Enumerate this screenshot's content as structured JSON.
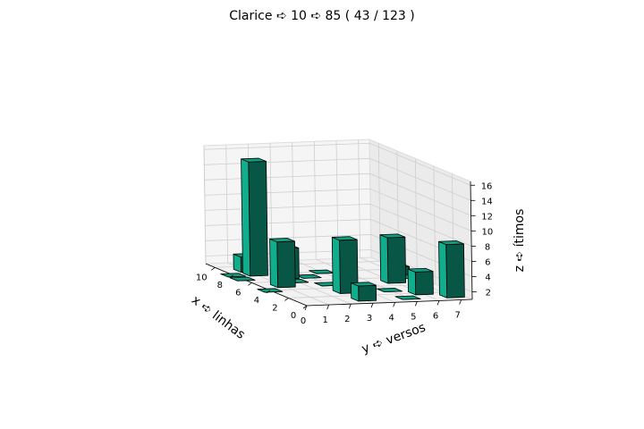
{
  "chart_data": {
    "type": "bar3d",
    "title": "Clarice ➪ 10 ➪ 85 ( 43 / 123 )",
    "xlabel": "x ➪ linhas",
    "ylabel": "y ➪ versos",
    "zlabel": "z ➪ ítimos",
    "xlim": [
      0,
      11
    ],
    "ylim": [
      0,
      7.5
    ],
    "zlim": [
      1,
      16.5
    ],
    "xticks": [
      "0",
      "2",
      "4",
      "6",
      "8",
      "10"
    ],
    "yticks": [
      "0",
      "1",
      "2",
      "3",
      "4",
      "5",
      "6",
      "7"
    ],
    "zticks": [
      "2",
      "4",
      "6",
      "8",
      "10",
      "12",
      "14",
      "16"
    ],
    "bar_color": "#0f9e80",
    "edge_color": "#000000",
    "bars": [
      {
        "x": 1,
        "y": 7,
        "z": 8
      },
      {
        "x": 1,
        "y": 5,
        "z": 1
      },
      {
        "x": 2,
        "y": 6,
        "z": 4
      },
      {
        "x": 1,
        "y": 3,
        "z": 3
      },
      {
        "x": 3,
        "y": 3,
        "z": 8
      },
      {
        "x": 3,
        "y": 5,
        "z": 1
      },
      {
        "x": 4,
        "y": 0,
        "z": 1
      },
      {
        "x": 5,
        "y": 1,
        "z": 7
      },
      {
        "x": 4,
        "y": 4,
        "z": 1
      },
      {
        "x": 5,
        "y": 3,
        "z": 1
      },
      {
        "x": 6,
        "y": 7,
        "z": 1
      },
      {
        "x": 5,
        "y": 6,
        "z": 7
      },
      {
        "x": 7,
        "y": 0,
        "z": 1
      },
      {
        "x": 8,
        "y": 0,
        "z": 1
      },
      {
        "x": 8,
        "y": 1,
        "z": 16
      },
      {
        "x": 9,
        "y": 1,
        "z": 3
      },
      {
        "x": 7,
        "y": 3,
        "z": 1
      },
      {
        "x": 7,
        "y": 2,
        "z": 5
      },
      {
        "x": 8,
        "y": 4,
        "z": 1
      },
      {
        "x": 7,
        "y": 7,
        "z": 2
      },
      {
        "x": 6,
        "y": 2,
        "z": 1
      }
    ]
  }
}
